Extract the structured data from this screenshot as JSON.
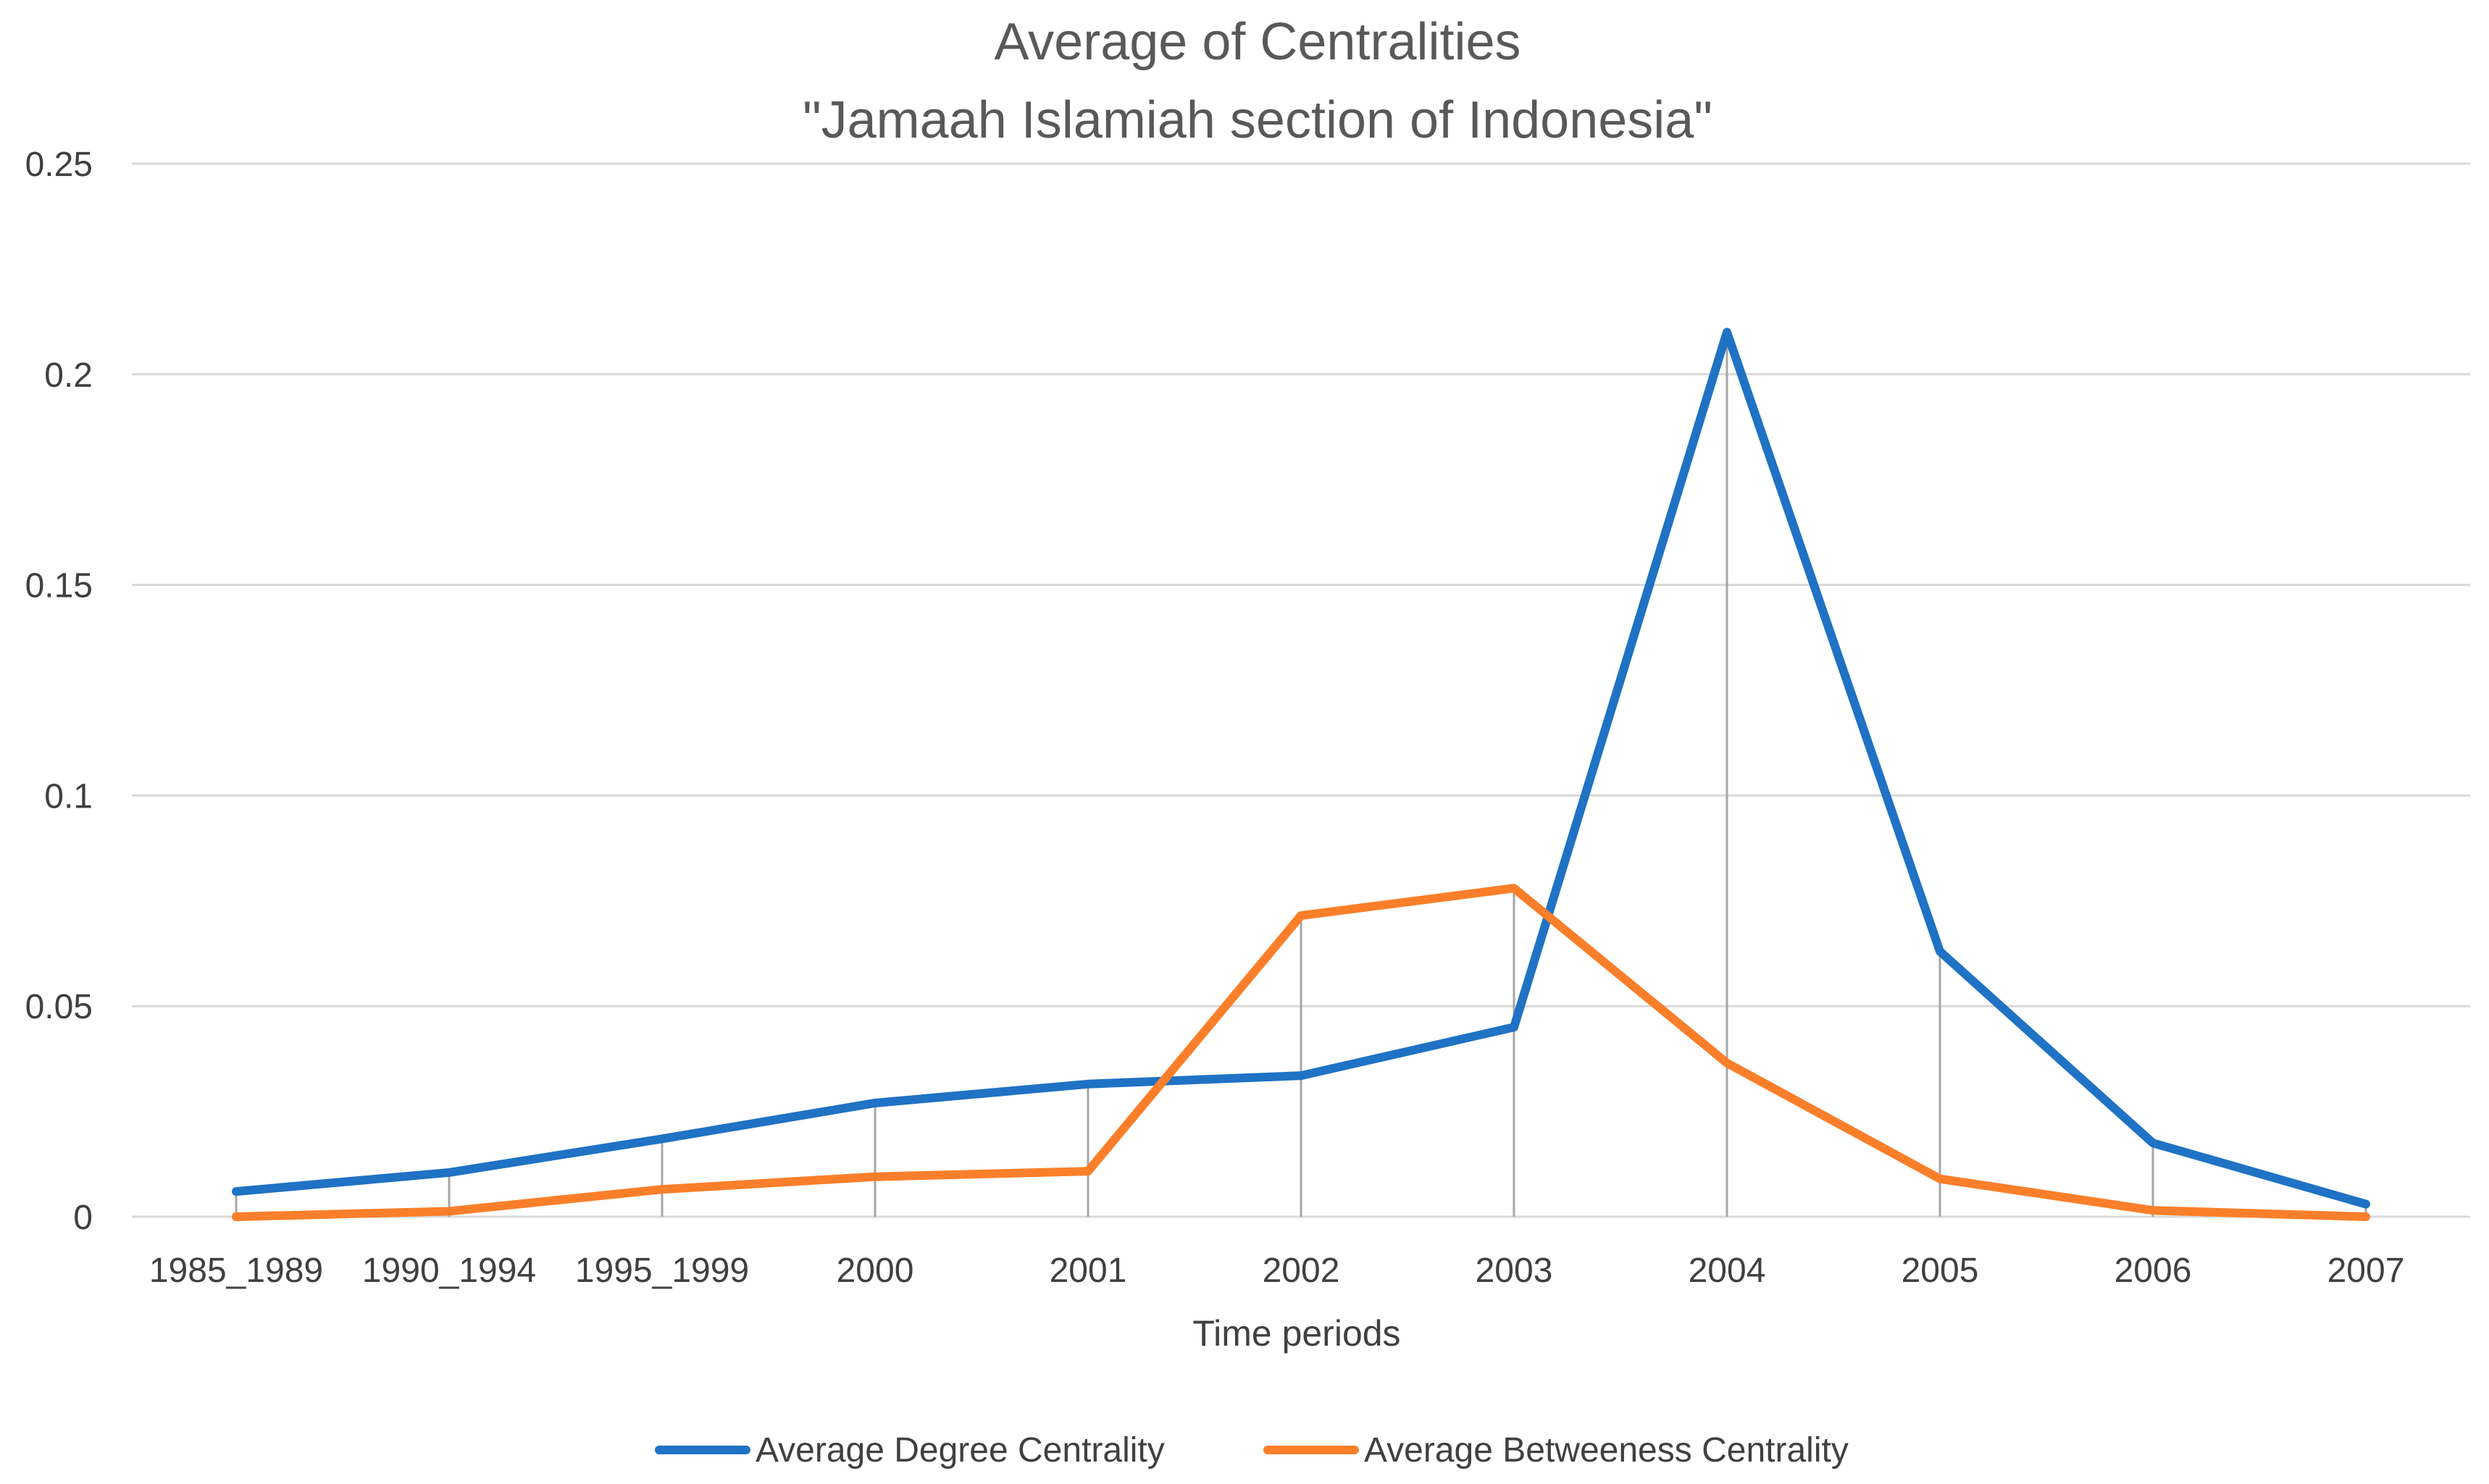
{
  "chart_data": {
    "type": "line",
    "title": "Average of Centralities",
    "subtitle": "\"Jamaah Islamiah section of Indonesia\"",
    "xlabel": "Time periods",
    "ylabel": "",
    "categories": [
      "1985_1989",
      "1990_1994",
      "1995_1999",
      "2000",
      "2001",
      "2002",
      "2003",
      "2004",
      "2005",
      "2006",
      "2007"
    ],
    "ylim": [
      0,
      0.25
    ],
    "yticks": [
      0,
      0.05,
      0.1,
      0.15,
      0.2,
      0.25
    ],
    "ytick_labels": [
      "0",
      "0.05",
      "0.1",
      "0.15",
      "0.2",
      "0.25"
    ],
    "grid": true,
    "drop_lines": true,
    "legend_position": "bottom",
    "series": [
      {
        "name": "Average Degree Centrality",
        "color": "#1f72c4",
        "values": [
          0.006,
          0.0105,
          0.0185,
          0.027,
          0.0315,
          0.0335,
          0.045,
          0.21,
          0.063,
          0.0175,
          0.003
        ]
      },
      {
        "name": "Average Betweeness Centrality",
        "color": "#fb7f2a",
        "values": [
          0.0,
          0.0013,
          0.0065,
          0.0095,
          0.0108,
          0.0715,
          0.078,
          0.0365,
          0.009,
          0.0015,
          0.0
        ]
      }
    ],
    "colors": {
      "gridline": "#d9d9d9",
      "dropline": "#a6a6a6",
      "text": "#404040",
      "title": "#595959"
    }
  }
}
